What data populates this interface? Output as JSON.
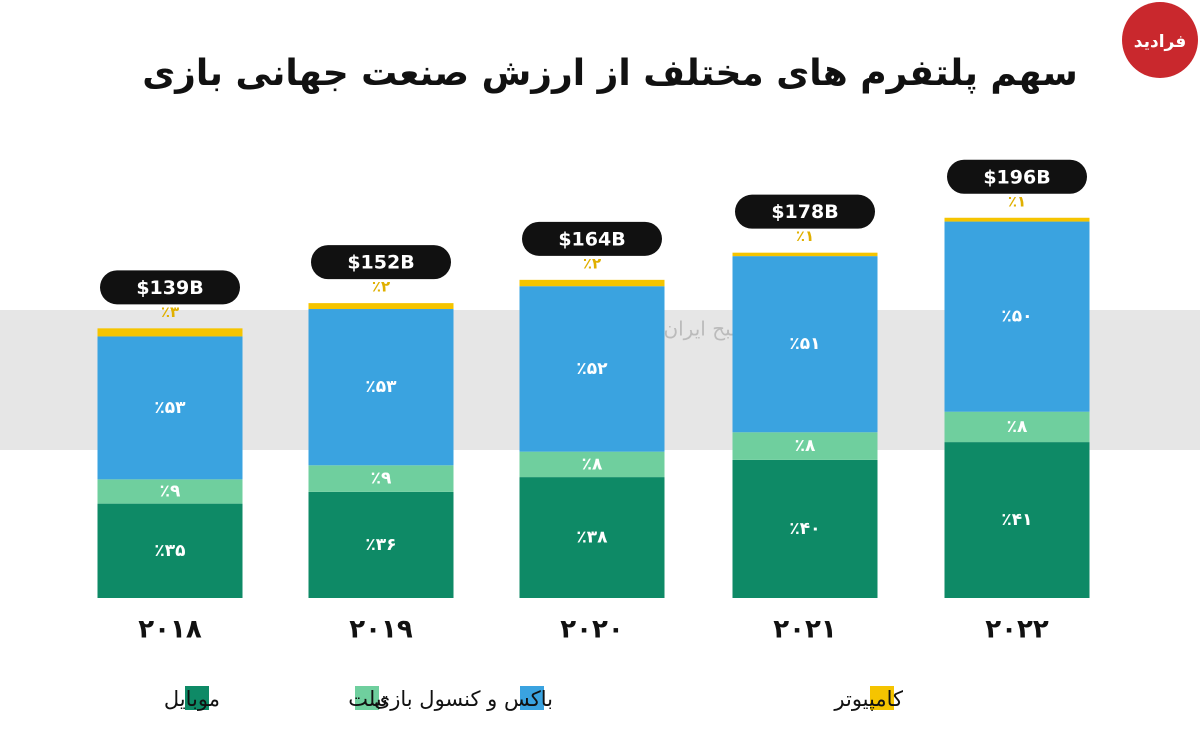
{
  "chart_data": {
    "type": "stacked_bar",
    "title": "سهم پلتفرم های مختلف از ارزش صنعت جهانی بازی",
    "brand": "فرادید",
    "watermark": "روزنامه صبح ایران",
    "categories": [
      "۲۰۱۸",
      "۲۰۱۹",
      "۲۰۲۰",
      "۲۰۲۱",
      "۲۰۲۲"
    ],
    "totals": {
      "values": [
        139,
        152,
        164,
        178,
        196
      ],
      "value_labels": [
        "$139B",
        "$152B",
        "$164B",
        "$178B",
        "$196B"
      ]
    },
    "series": [
      {
        "name": "موبایل",
        "color": "#0e8a66",
        "values": [
          35,
          36,
          38,
          40,
          41
        ],
        "value_labels": [
          "٪۳۵",
          "٪۳۶",
          "٪۳۸",
          "٪۴۰",
          "٪۴۱"
        ]
      },
      {
        "name": "تبلت",
        "color": "#6fcf9e",
        "values": [
          9,
          9,
          8,
          8,
          8
        ],
        "value_labels": [
          "٪۹",
          "٪۹",
          "٪۸",
          "٪۸",
          "٪۸"
        ]
      },
      {
        "name": "باکس و کنسول بازی",
        "color": "#3aa3e0",
        "values": [
          53,
          53,
          52,
          51,
          50
        ],
        "value_labels": [
          "٪۵۳",
          "٪۵۳",
          "٪۵۲",
          "٪۵۱",
          "٪۵۰"
        ]
      },
      {
        "name": "کامپیوتر",
        "color": "#f5c400",
        "values": [
          3,
          2,
          2,
          1,
          1
        ],
        "value_labels": [
          "٪۳",
          "٪۲",
          "٪۲",
          "٪۱",
          "٪۱"
        ]
      }
    ]
  }
}
